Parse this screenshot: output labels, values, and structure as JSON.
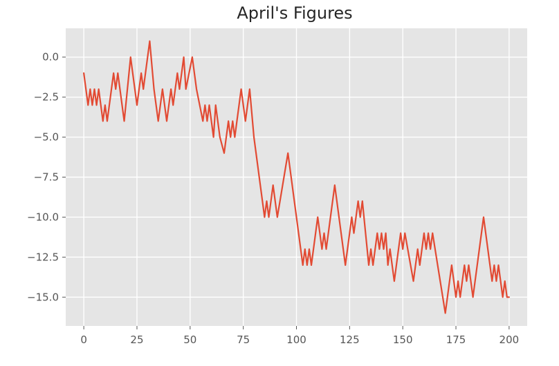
{
  "chart_data": {
    "type": "line",
    "title": "April's Figures",
    "xlabel": "",
    "ylabel": "",
    "xlim": [
      -8.5,
      208.5
    ],
    "ylim": [
      -16.8,
      1.8
    ],
    "grid": true,
    "style": "ggplot",
    "x_ticks": [
      0,
      25,
      50,
      75,
      100,
      125,
      150,
      175,
      200
    ],
    "x_tick_labels": [
      "0",
      "25",
      "50",
      "75",
      "100",
      "125",
      "150",
      "175",
      "200"
    ],
    "y_ticks": [
      0,
      -2.5,
      -5,
      -7.5,
      -10,
      -12.5,
      -15
    ],
    "y_tick_labels": [
      "0.0",
      "−2.5",
      "−5.0",
      "−7.5",
      "−10.0",
      "−12.5",
      "−15.0"
    ],
    "series": [
      {
        "color": "#e24a33",
        "points": [
          [
            0,
            -1
          ],
          [
            2,
            -3
          ],
          [
            3,
            -2
          ],
          [
            4,
            -3
          ],
          [
            5,
            -2
          ],
          [
            6,
            -3
          ],
          [
            7,
            -2
          ],
          [
            9,
            -4
          ],
          [
            10,
            -3
          ],
          [
            11,
            -4
          ],
          [
            12,
            -3
          ],
          [
            14,
            -1
          ],
          [
            15,
            -2
          ],
          [
            16,
            -1
          ],
          [
            17,
            -2
          ],
          [
            19,
            -4
          ],
          [
            22,
            0
          ],
          [
            25,
            -3
          ],
          [
            27,
            -1
          ],
          [
            28,
            -2
          ],
          [
            31,
            1
          ],
          [
            33,
            -2
          ],
          [
            35,
            -4
          ],
          [
            37,
            -2
          ],
          [
            39,
            -4
          ],
          [
            41,
            -2
          ],
          [
            42,
            -3
          ],
          [
            44,
            -1
          ],
          [
            45,
            -2
          ],
          [
            47,
            0
          ],
          [
            48,
            -2
          ],
          [
            51,
            0
          ],
          [
            53,
            -2
          ],
          [
            56,
            -4
          ],
          [
            57,
            -3
          ],
          [
            58,
            -4
          ],
          [
            59,
            -3
          ],
          [
            60,
            -4
          ],
          [
            61,
            -5
          ],
          [
            62,
            -3
          ],
          [
            64,
            -5
          ],
          [
            66,
            -6
          ],
          [
            68,
            -4
          ],
          [
            69,
            -5
          ],
          [
            70,
            -4
          ],
          [
            71,
            -5
          ],
          [
            74,
            -2
          ],
          [
            76,
            -4
          ],
          [
            78,
            -2
          ],
          [
            80,
            -5
          ],
          [
            82,
            -7
          ],
          [
            85,
            -10
          ],
          [
            86,
            -9
          ],
          [
            87,
            -10
          ],
          [
            89,
            -8
          ],
          [
            91,
            -10
          ],
          [
            96,
            -6
          ],
          [
            99,
            -9
          ],
          [
            103,
            -13
          ],
          [
            104,
            -12
          ],
          [
            105,
            -13
          ],
          [
            106,
            -12
          ],
          [
            107,
            -13
          ],
          [
            110,
            -10
          ],
          [
            112,
            -12
          ],
          [
            113,
            -11
          ],
          [
            114,
            -12
          ],
          [
            118,
            -8
          ],
          [
            123,
            -13
          ],
          [
            126,
            -10
          ],
          [
            127,
            -11
          ],
          [
            129,
            -9
          ],
          [
            130,
            -10
          ],
          [
            131,
            -9
          ],
          [
            134,
            -13
          ],
          [
            135,
            -12
          ],
          [
            136,
            -13
          ],
          [
            138,
            -11
          ],
          [
            139,
            -12
          ],
          [
            140,
            -11
          ],
          [
            141,
            -12
          ],
          [
            142,
            -11
          ],
          [
            143,
            -13
          ],
          [
            144,
            -12
          ],
          [
            146,
            -14
          ],
          [
            149,
            -11
          ],
          [
            150,
            -12
          ],
          [
            151,
            -11
          ],
          [
            155,
            -14
          ],
          [
            157,
            -12
          ],
          [
            158,
            -13
          ],
          [
            160,
            -11
          ],
          [
            161,
            -12
          ],
          [
            162,
            -11
          ],
          [
            163,
            -12
          ],
          [
            164,
            -11
          ],
          [
            170,
            -16
          ],
          [
            173,
            -13
          ],
          [
            175,
            -15
          ],
          [
            176,
            -14
          ],
          [
            177,
            -15
          ],
          [
            179,
            -13
          ],
          [
            180,
            -14
          ],
          [
            181,
            -13
          ],
          [
            183,
            -15
          ],
          [
            188,
            -10
          ],
          [
            192,
            -14
          ],
          [
            193,
            -13
          ],
          [
            194,
            -14
          ],
          [
            195,
            -13
          ],
          [
            197,
            -15
          ],
          [
            198,
            -14
          ],
          [
            199,
            -15
          ],
          [
            200,
            -15
          ]
        ]
      }
    ],
    "colors": {
      "plot_background": "#e5e5e5",
      "grid": "#ffffff",
      "line": "#e24a33",
      "text": "#555555",
      "title": "#262626"
    }
  }
}
